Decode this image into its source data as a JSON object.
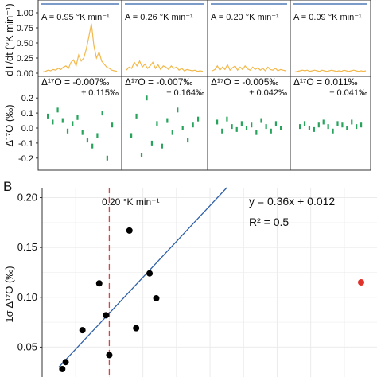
{
  "panel_a": {
    "rate_ylabel": "dT/dt (°K min⁻¹)",
    "rate_ticks": [
      "1.00",
      "0.75",
      "0.50",
      "0.25",
      "0.00"
    ],
    "iso_ylabel": "Δ¹⁷O (‰)",
    "iso_ticks": [
      "0.2",
      "0.1",
      "0.0",
      "-0.1",
      "-0.2"
    ],
    "columns": [
      {
        "rate_label": "A = 0.95 °K min⁻¹",
        "mean_label": "Δ¹⁷O = -0.007‰",
        "sd_label": "± 0.115‰"
      },
      {
        "rate_label": "A = 0.26 °K min⁻¹",
        "mean_label": "Δ¹⁷O = -0.007‰",
        "sd_label": "± 0.164‰"
      },
      {
        "rate_label": "A = 0.20 °K min⁻¹",
        "mean_label": "Δ¹⁷O = -0.005‰",
        "sd_label": "± 0.042‰"
      },
      {
        "rate_label": "A = 0.09 °K min⁻¹",
        "mean_label": "Δ¹⁷O = 0.011‰",
        "sd_label": "± 0.041‰"
      }
    ]
  },
  "panel_b": {
    "label": "B",
    "ylabel": "1σ Δ¹⁷O (‰)",
    "threshold_label": "0.20 °K min⁻¹",
    "equation": "y = 0.36x + 0.012",
    "r2": "R² = 0.5"
  },
  "colors": {
    "rate_line": "#f2b84b",
    "iso_points": "#27a35c",
    "threshold": "#d64541",
    "fit_line": "#2e5fa8",
    "outlier": "#e0312a",
    "points": "#000000",
    "frame": "#333333",
    "grid": "#ebebeb"
  },
  "chart_data": [
    {
      "type": "line",
      "ylim": [
        0.0,
        1.0
      ],
      "series": [
        {
          "values": [
            0.02,
            0.03,
            0.05,
            0.04,
            0.06,
            0.05,
            0.08,
            0.06,
            0.1,
            0.12,
            0.08,
            0.18,
            0.22,
            0.12,
            0.3,
            0.2,
            0.25,
            0.4,
            0.6,
            0.82,
            0.45,
            0.25,
            0.35,
            0.2,
            0.15,
            0.1,
            0.08,
            0.05,
            0.04,
            0.03
          ]
        },
        {
          "values": [
            0.05,
            0.1,
            0.08,
            0.18,
            0.12,
            0.2,
            0.1,
            0.15,
            0.08,
            0.12,
            0.18,
            0.08,
            0.14,
            0.06,
            0.12,
            0.1,
            0.06,
            0.12,
            0.08,
            0.1,
            0.05,
            0.08,
            0.04,
            0.06,
            0.05,
            0.04,
            0.05,
            0.03,
            0.04,
            0.03
          ]
        },
        {
          "values": [
            0.04,
            0.06,
            0.12,
            0.05,
            0.1,
            0.06,
            0.14,
            0.05,
            0.09,
            0.12,
            0.05,
            0.1,
            0.06,
            0.12,
            0.07,
            0.05,
            0.1,
            0.06,
            0.09,
            0.05,
            0.08,
            0.04,
            0.1,
            0.06,
            0.05,
            0.08,
            0.04,
            0.06,
            0.05,
            0.04
          ]
        },
        {
          "values": [
            0.02,
            0.03,
            0.04,
            0.05,
            0.04,
            0.05,
            0.03,
            0.04,
            0.05,
            0.04,
            0.03,
            0.05,
            0.04,
            0.03,
            0.04,
            0.05,
            0.04,
            0.03,
            0.04,
            0.03,
            0.05,
            0.04,
            0.03,
            0.04,
            0.05,
            0.04,
            0.03,
            0.04,
            0.03,
            0.04
          ]
        }
      ]
    },
    {
      "type": "scatter",
      "ylim": [
        -0.27,
        0.27
      ],
      "series": [
        {
          "values": [
            0.08,
            0.04,
            0.12,
            0.05,
            -0.02,
            0.03,
            0.07,
            -0.03,
            -0.08,
            -0.12,
            -0.05,
            0.1,
            -0.2,
            0.02
          ]
        },
        {
          "values": [
            -0.05,
            0.08,
            -0.18,
            0.2,
            -0.1,
            0.03,
            -0.12,
            0.05,
            -0.03,
            0.12,
            0.0,
            -0.08,
            0.02,
            0.06
          ]
        },
        {
          "values": [
            0.04,
            -0.02,
            0.06,
            0.01,
            -0.01,
            0.03,
            0.0,
            0.02,
            -0.03,
            0.05,
            0.01,
            -0.02,
            0.03,
            0.0
          ]
        },
        {
          "values": [
            0.01,
            0.03,
            0.0,
            -0.01,
            0.02,
            0.04,
            0.01,
            -0.02,
            0.03,
            0.02,
            0.0,
            0.04,
            0.01,
            0.02
          ]
        }
      ]
    },
    {
      "type": "scatter",
      "xlim": [
        0.0,
        0.95
      ],
      "ylim": [
        0.02,
        0.21
      ],
      "yticks": [
        0.05,
        0.1,
        0.15,
        0.2
      ],
      "threshold_x": 0.2,
      "fit": {
        "slope": 0.36,
        "intercept": 0.012
      },
      "points": [
        {
          "x": 0.06,
          "y": 0.028
        },
        {
          "x": 0.07,
          "y": 0.035
        },
        {
          "x": 0.12,
          "y": 0.067
        },
        {
          "x": 0.17,
          "y": 0.114
        },
        {
          "x": 0.19,
          "y": 0.082
        },
        {
          "x": 0.2,
          "y": 0.042
        },
        {
          "x": 0.26,
          "y": 0.167
        },
        {
          "x": 0.28,
          "y": 0.069
        },
        {
          "x": 0.32,
          "y": 0.124
        },
        {
          "x": 0.34,
          "y": 0.099
        }
      ],
      "outliers": [
        {
          "x": 0.95,
          "y": 0.115
        }
      ]
    }
  ]
}
